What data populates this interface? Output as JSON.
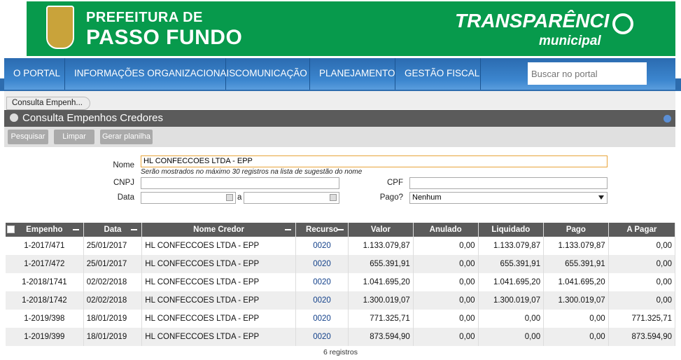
{
  "header": {
    "title_line1": "PREFEITURA DE",
    "title_line2": "PASSO FUNDO",
    "brand_line1": "TRANSPARÊNCI",
    "brand_line2": "municipal",
    "brand_color": "#079a4c"
  },
  "nav": {
    "items": [
      "O PORTAL",
      "INFORMAÇÕES ORGANIZACIONAIS",
      "COMUNICAÇÃO",
      "PLANEJAMENTO",
      "GESTÃO FISCAL"
    ],
    "search_placeholder": "Buscar no portal"
  },
  "breadcrumb": "Consulta Empenh...",
  "panel": {
    "title": "Consulta Empenhos Credores"
  },
  "toolbar": {
    "search": "Pesquisar",
    "clear": "Limpar",
    "export": "Gerar planilha"
  },
  "form": {
    "nome_label": "Nome",
    "nome_value": "HL CONFECCOES LTDA - EPP",
    "nome_hint": "Serão mostrados no máximo 30 registros na lista de sugestão do nome",
    "cnpj_label": "CNPJ",
    "cpf_label": "CPF",
    "data_label": "Data",
    "data_sep": "a",
    "pago_label": "Pago?",
    "pago_value": "Nenhum"
  },
  "table": {
    "headers": [
      "Empenho",
      "Data",
      "Nome Credor",
      "Recurso",
      "Valor",
      "Anulado",
      "Liquidado",
      "Pago",
      "A Pagar"
    ],
    "rows": [
      [
        "1-2017/471",
        "25/01/2017",
        "HL CONFECCOES LTDA - EPP",
        "0020",
        "1.133.079,87",
        "0,00",
        "1.133.079,87",
        "1.133.079,87",
        "0,00"
      ],
      [
        "1-2017/472",
        "25/01/2017",
        "HL CONFECCOES LTDA - EPP",
        "0020",
        "655.391,91",
        "0,00",
        "655.391,91",
        "655.391,91",
        "0,00"
      ],
      [
        "1-2018/1741",
        "02/02/2018",
        "HL CONFECCOES LTDA - EPP",
        "0020",
        "1.041.695,20",
        "0,00",
        "1.041.695,20",
        "1.041.695,20",
        "0,00"
      ],
      [
        "1-2018/1742",
        "02/02/2018",
        "HL CONFECCOES LTDA - EPP",
        "0020",
        "1.300.019,07",
        "0,00",
        "1.300.019,07",
        "1.300.019,07",
        "0,00"
      ],
      [
        "1-2019/398",
        "18/01/2019",
        "HL CONFECCOES LTDA - EPP",
        "0020",
        "771.325,71",
        "0,00",
        "0,00",
        "0,00",
        "771.325,71"
      ],
      [
        "1-2019/399",
        "18/01/2019",
        "HL CONFECCOES LTDA - EPP",
        "0020",
        "873.594,90",
        "0,00",
        "0,00",
        "0,00",
        "873.594,90"
      ]
    ],
    "footer": "6 registros"
  }
}
